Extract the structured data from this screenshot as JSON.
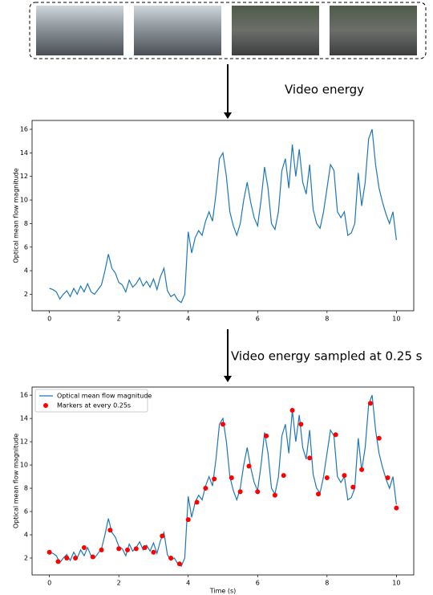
{
  "labels": [
    "Video energy",
    "Video energy sampled at 0.25 s"
  ],
  "chart_data": [
    {
      "type": "line",
      "ylabel": "Optical mean flow magnitude",
      "color": "#1f77b4",
      "xlim": [
        -0.5,
        10.5
      ],
      "ylim": [
        0.6,
        16.75
      ],
      "xticks": [
        0,
        2,
        4,
        6,
        8,
        10
      ],
      "yticks": [
        2,
        4,
        6,
        8,
        10,
        12,
        14,
        16
      ],
      "x": [
        0,
        0.1,
        0.2,
        0.3,
        0.4,
        0.5,
        0.6,
        0.7,
        0.8,
        0.9,
        1,
        1.1,
        1.2,
        1.3,
        1.4,
        1.5,
        1.6,
        1.7,
        1.8,
        1.9,
        2,
        2.1,
        2.2,
        2.3,
        2.4,
        2.5,
        2.6,
        2.7,
        2.8,
        2.9,
        3,
        3.1,
        3.2,
        3.3,
        3.4,
        3.5,
        3.6,
        3.7,
        3.8,
        3.9,
        4,
        4.1,
        4.2,
        4.3,
        4.4,
        4.5,
        4.6,
        4.7,
        4.8,
        4.9,
        5,
        5.1,
        5.2,
        5.3,
        5.4,
        5.5,
        5.6,
        5.7,
        5.8,
        5.9,
        6,
        6.1,
        6.2,
        6.3,
        6.4,
        6.5,
        6.6,
        6.7,
        6.8,
        6.9,
        7,
        7.1,
        7.2,
        7.3,
        7.4,
        7.5,
        7.6,
        7.7,
        7.8,
        7.9,
        8,
        8.1,
        8.2,
        8.3,
        8.4,
        8.5,
        8.6,
        8.7,
        8.8,
        8.9,
        9,
        9.1,
        9.2,
        9.3,
        9.4,
        9.5,
        9.6,
        9.7,
        9.8,
        9.9,
        10
      ],
      "values": [
        2.5,
        2.4,
        2.2,
        1.6,
        2,
        2.3,
        1.8,
        2.5,
        2,
        2.7,
        2.2,
        2.9,
        2.2,
        2,
        2.4,
        2.8,
        4,
        5.4,
        4.2,
        3.8,
        3,
        2.8,
        2.2,
        3.2,
        2.6,
        2.9,
        3.4,
        2.7,
        3.1,
        2.6,
        3.3,
        2.4,
        3.5,
        4.2,
        2.3,
        1.8,
        2,
        1.5,
        1.3,
        2,
        7.3,
        5.5,
        6.8,
        7.4,
        7,
        8.2,
        9,
        8.2,
        10.5,
        13.5,
        14,
        12,
        9,
        7.8,
        7,
        8,
        10,
        11.5,
        9.8,
        8.5,
        7.8,
        10,
        12.8,
        11,
        8,
        7.5,
        9,
        12.5,
        13.5,
        11,
        14.7,
        12,
        14.3,
        11.5,
        10.5,
        13,
        9.2,
        8,
        7.6,
        9,
        11,
        13,
        12.5,
        9,
        8.5,
        9,
        7,
        7.2,
        8,
        12.3,
        9.5,
        11.5,
        15.2,
        16,
        13,
        11,
        9.8,
        8.8,
        8,
        9,
        6.6
      ]
    },
    {
      "type": "line",
      "ylabel": "Optical mean flow magnitude",
      "xlabel": "Time (s)",
      "legend": "upper left",
      "xlim": [
        -0.5,
        10.5
      ],
      "ylim": [
        0.55,
        16.7
      ],
      "xticks": [
        0,
        2,
        4,
        6,
        8,
        10
      ],
      "yticks": [
        2,
        4,
        6,
        8,
        10,
        12,
        14,
        16
      ],
      "series": [
        {
          "name": "Optical mean flow magnitude",
          "style": "line",
          "color": "#1f77b4",
          "x": [
            0,
            0.1,
            0.2,
            0.3,
            0.4,
            0.5,
            0.6,
            0.7,
            0.8,
            0.9,
            1,
            1.1,
            1.2,
            1.3,
            1.4,
            1.5,
            1.6,
            1.7,
            1.8,
            1.9,
            2,
            2.1,
            2.2,
            2.3,
            2.4,
            2.5,
            2.6,
            2.7,
            2.8,
            2.9,
            3,
            3.1,
            3.2,
            3.3,
            3.4,
            3.5,
            3.6,
            3.7,
            3.8,
            3.9,
            4,
            4.1,
            4.2,
            4.3,
            4.4,
            4.5,
            4.6,
            4.7,
            4.8,
            4.9,
            5,
            5.1,
            5.2,
            5.3,
            5.4,
            5.5,
            5.6,
            5.7,
            5.8,
            5.9,
            6,
            6.1,
            6.2,
            6.3,
            6.4,
            6.5,
            6.6,
            6.7,
            6.8,
            6.9,
            7,
            7.1,
            7.2,
            7.3,
            7.4,
            7.5,
            7.6,
            7.7,
            7.8,
            7.9,
            8,
            8.1,
            8.2,
            8.3,
            8.4,
            8.5,
            8.6,
            8.7,
            8.8,
            8.9,
            9,
            9.1,
            9.2,
            9.3,
            9.4,
            9.5,
            9.6,
            9.7,
            9.8,
            9.9,
            10
          ],
          "values": [
            2.5,
            2.4,
            2.2,
            1.6,
            2,
            2.3,
            1.8,
            2.5,
            2,
            2.7,
            2.2,
            2.9,
            2.2,
            2,
            2.4,
            2.8,
            4,
            5.4,
            4.2,
            3.8,
            3,
            2.8,
            2.2,
            3.2,
            2.6,
            2.9,
            3.4,
            2.7,
            3.1,
            2.6,
            3.3,
            2.4,
            3.5,
            4.2,
            2.3,
            1.8,
            2,
            1.5,
            1.3,
            2,
            7.3,
            5.5,
            6.8,
            7.4,
            7,
            8.2,
            9,
            8.2,
            10.5,
            13.5,
            14,
            12,
            9,
            7.8,
            7,
            8,
            10,
            11.5,
            9.8,
            8.5,
            7.8,
            10,
            12.8,
            11,
            8,
            7.5,
            9,
            12.5,
            13.5,
            11,
            14.7,
            12,
            14.3,
            11.5,
            10.5,
            13,
            9.2,
            8,
            7.6,
            9,
            11,
            13,
            12.5,
            9,
            8.5,
            9,
            7,
            7.2,
            8,
            12.3,
            9.5,
            11.5,
            15.2,
            16,
            13,
            11,
            9.8,
            8.8,
            8,
            9,
            6.6
          ]
        },
        {
          "name": "Markers at every 0.25s",
          "style": "scatter",
          "color": "#ff0000",
          "x": [
            0,
            0.25,
            0.5,
            0.75,
            1,
            1.25,
            1.5,
            1.75,
            2,
            2.25,
            2.5,
            2.75,
            3,
            3.25,
            3.5,
            3.75,
            4,
            4.25,
            4.5,
            4.75,
            5,
            5.25,
            5.5,
            5.75,
            6,
            6.25,
            6.5,
            6.75,
            7,
            7.25,
            7.5,
            7.75,
            8,
            8.25,
            8.5,
            8.75,
            9,
            9.25,
            9.5,
            9.75,
            10
          ],
          "values": [
            2.5,
            1.7,
            2,
            2,
            2.9,
            2.1,
            2.7,
            4.4,
            2.8,
            2.7,
            2.8,
            2.9,
            2.5,
            3.9,
            2,
            1.5,
            5.3,
            6.8,
            8,
            8.8,
            13.5,
            8.9,
            7.7,
            9.9,
            7.7,
            12.5,
            7.4,
            9.1,
            14.7,
            13.5,
            10.6,
            7.5,
            8.9,
            12.6,
            9.1,
            8.1,
            9.6,
            15.3,
            12.3,
            8.9,
            6.3
          ]
        }
      ]
    }
  ]
}
